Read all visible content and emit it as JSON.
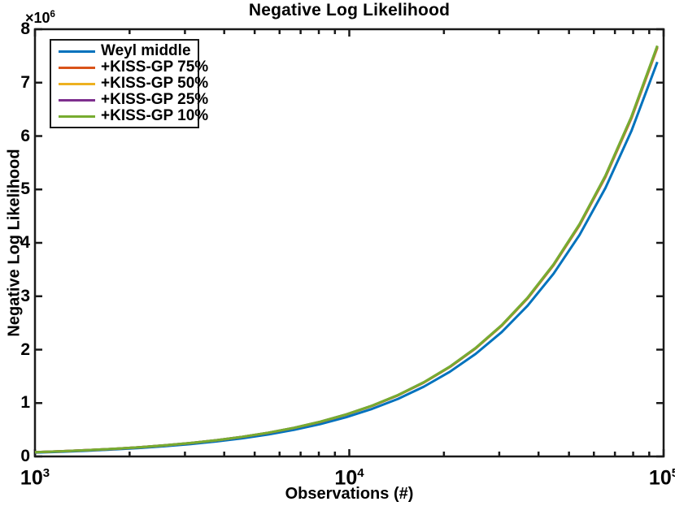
{
  "chart_data": {
    "type": "line",
    "title": "Negative Log Likelihood",
    "xlabel": "Observations (#)",
    "ylabel": "Negative Log Likelihood",
    "x_scale": "log",
    "x_range": [
      1000,
      100000
    ],
    "y_range": [
      0,
      8000000
    ],
    "y_exponent": {
      "base": "×10",
      "exp": "6"
    },
    "grid": false,
    "legend_position": "top-left",
    "axis_color": "#1a1a1a",
    "background": "#ffffff",
    "x_ticks": [
      {
        "value": 1000,
        "base": "10",
        "exp": "3"
      },
      {
        "value": 10000,
        "base": "10",
        "exp": "4"
      },
      {
        "value": 100000,
        "base": "10",
        "exp": "5"
      }
    ],
    "x_minor_ticks": [
      2000,
      3000,
      4000,
      5000,
      6000,
      7000,
      8000,
      9000,
      20000,
      30000,
      40000,
      50000,
      60000,
      70000,
      80000,
      90000
    ],
    "y_ticks": [
      {
        "value": 0,
        "label": "0"
      },
      {
        "value": 1000000,
        "label": "1"
      },
      {
        "value": 2000000,
        "label": "2"
      },
      {
        "value": 3000000,
        "label": "3"
      },
      {
        "value": 4000000,
        "label": "4"
      },
      {
        "value": 5000000,
        "label": "5"
      },
      {
        "value": 6000000,
        "label": "6"
      },
      {
        "value": 7000000,
        "label": "7"
      },
      {
        "value": 8000000,
        "label": "8"
      }
    ],
    "x": [
      1000,
      1210,
      1460,
      1770,
      2140,
      2590,
      3130,
      3780,
      4570,
      5530,
      6680,
      8080,
      9770,
      11820,
      14290,
      17280,
      20890,
      25260,
      30550,
      36940,
      44670,
      54010,
      65310,
      78980,
      95500
    ],
    "series": [
      {
        "name": "Weyl middle",
        "color": "#0072BD",
        "values": [
          73000,
          88500,
          107100,
          130200,
          157800,
          191400,
          231900,
          280700,
          340200,
          412700,
          499800,
          606000,
          734500,
          890700,
          1079000,
          1308000,
          1586000,
          1922000,
          2330000,
          2824000,
          3423000,
          4148000,
          5028000,
          6095000,
          7387000
        ]
      },
      {
        "name": "+KISS-GP 75%",
        "color": "#D95319",
        "values": [
          79900,
          96700,
          116700,
          141600,
          171100,
          207200,
          250400,
          302500,
          365800,
          442700,
          534900,
          647000,
          782500,
          946600,
          1144000,
          1384000,
          1675000,
          2024000,
          2448000,
          2960000,
          3580000,
          4328000,
          5234000,
          6330000,
          7654000
        ]
      },
      {
        "name": "+KISS-GP 50%",
        "color": "#EDB120",
        "values": [
          80100,
          96900,
          116900,
          141900,
          171500,
          207600,
          250900,
          303100,
          366500,
          443600,
          536000,
          648300,
          784000,
          948500,
          1146500,
          1387000,
          1678000,
          2028000,
          2453000,
          2966000,
          3587000,
          4337000,
          5244000,
          6343000,
          7669000
        ]
      },
      {
        "name": "+KISS-GP 25%",
        "color": "#7E2F8E",
        "values": [
          80200,
          97100,
          117200,
          142200,
          171800,
          208000,
          251400,
          303700,
          367200,
          444500,
          537100,
          649700,
          785600,
          950400,
          1148900,
          1389600,
          1681000,
          2032000,
          2458000,
          2972000,
          3594000,
          4346000,
          5255000,
          6356000,
          7684000
        ]
      },
      {
        "name": "+KISS-GP 10%",
        "color": "#77AC30",
        "values": [
          80300,
          97200,
          117300,
          142300,
          172100,
          208300,
          251900,
          304300,
          368000,
          444900,
          537600,
          650300,
          786400,
          951400,
          1150000,
          1391000,
          1683000,
          2034000,
          2460000,
          2975000,
          3598000,
          4350000,
          5260000,
          6362000,
          7692000
        ]
      }
    ]
  }
}
